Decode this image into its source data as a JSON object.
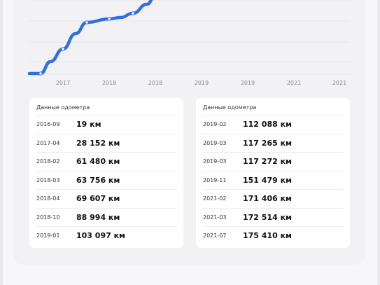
{
  "chart_data": {
    "type": "line",
    "x_ticks": [
      "2017",
      "2018",
      "2018",
      "2019",
      "2019",
      "2021",
      "2021"
    ],
    "color": "#2f6fe0",
    "grid": true
  },
  "left_panel": {
    "title": "Данные одометра",
    "rows": [
      {
        "date": "2016-09",
        "value": "19 км"
      },
      {
        "date": "2017-04",
        "value": "28 152 км"
      },
      {
        "date": "2018-02",
        "value": "61 480 км"
      },
      {
        "date": "2018-03",
        "value": "63 756 км"
      },
      {
        "date": "2018-04",
        "value": "69 607 км"
      },
      {
        "date": "2018-10",
        "value": "88 994 км"
      },
      {
        "date": "2019-01",
        "value": "103 097 км"
      }
    ]
  },
  "right_panel": {
    "title": "Данные одометра",
    "rows": [
      {
        "date": "2019-02",
        "value": "112 088 км"
      },
      {
        "date": "2019-03",
        "value": "117 265 км"
      },
      {
        "date": "2019-03",
        "value": "117 272 км"
      },
      {
        "date": "2019-11",
        "value": "151 479 км"
      },
      {
        "date": "2021-02",
        "value": "171 406 км"
      },
      {
        "date": "2021-03",
        "value": "172 514 км"
      },
      {
        "date": "2021-07",
        "value": "175 410 км"
      }
    ]
  }
}
